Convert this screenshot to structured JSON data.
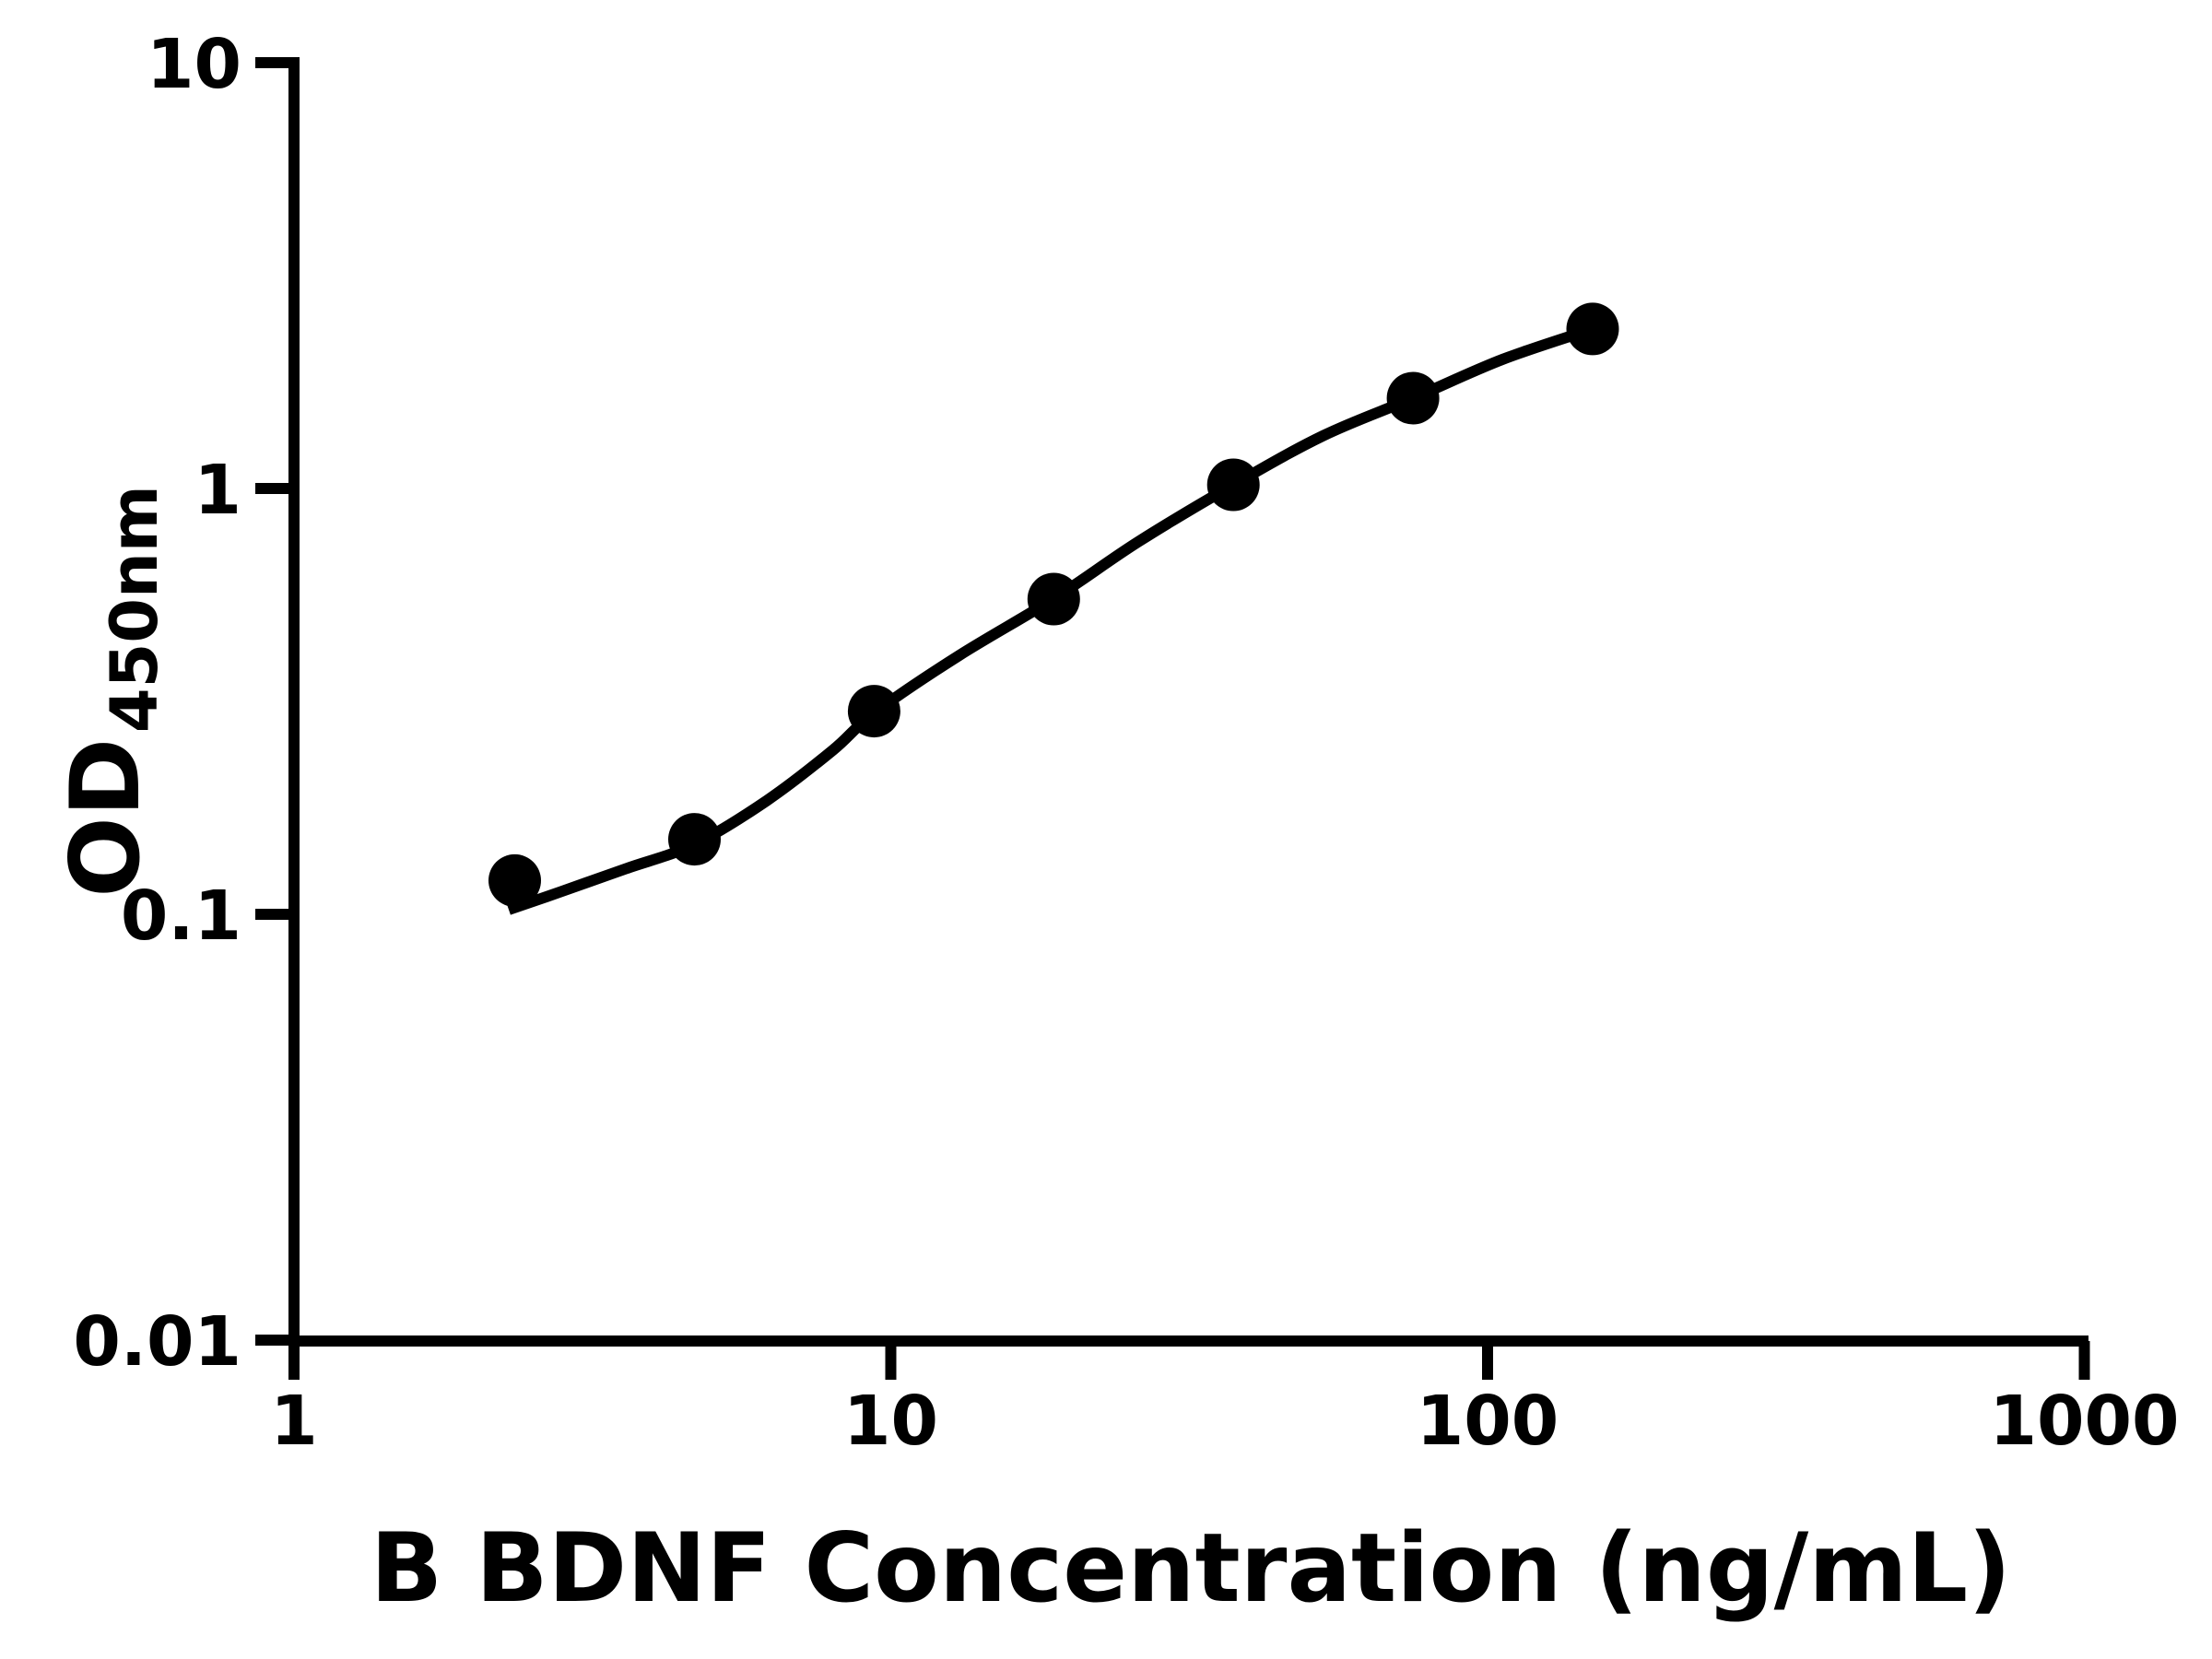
{
  "chart_data": {
    "type": "scatter",
    "title": "",
    "xlabel": "B BDNF Concentration (ng/mL)",
    "ylabel_main": "OD",
    "ylabel_sub": "450nm",
    "x_scale": "log",
    "y_scale": "log",
    "xlim": [
      1,
      1000
    ],
    "ylim": [
      0.01,
      10
    ],
    "grid": false,
    "legend": false,
    "x_ticks": [
      {
        "value": 1,
        "label": "1"
      },
      {
        "value": 10,
        "label": "10"
      },
      {
        "value": 100,
        "label": "100"
      },
      {
        "value": 1000,
        "label": "1000"
      }
    ],
    "y_ticks": [
      {
        "value": 10,
        "label": "10"
      },
      {
        "value": 1,
        "label": "1"
      },
      {
        "value": 0.1,
        "label": "0.1"
      },
      {
        "value": 0.01,
        "label": "0.01"
      }
    ],
    "series": [
      {
        "marker": "filled-circle",
        "color": "#000000",
        "points": [
          {
            "x": 2.344,
            "y": 0.12
          },
          {
            "x": 4.688,
            "y": 0.15
          },
          {
            "x": 9.375,
            "y": 0.3
          },
          {
            "x": 18.75,
            "y": 0.55
          },
          {
            "x": 37.5,
            "y": 1.02
          },
          {
            "x": 75,
            "y": 1.63
          },
          {
            "x": 150,
            "y": 2.37
          }
        ]
      }
    ],
    "fit_curve": {
      "points": [
        [
          2.29,
          0.1025
        ],
        [
          2.8,
          0.113
        ],
        [
          3.6,
          0.128
        ],
        [
          4.688,
          0.146
        ],
        [
          6.2,
          0.185
        ],
        [
          8.0,
          0.243
        ],
        [
          9.375,
          0.297
        ],
        [
          13.0,
          0.405
        ],
        [
          18.75,
          0.551
        ],
        [
          26.0,
          0.75
        ],
        [
          37.5,
          1.02
        ],
        [
          53.0,
          1.33
        ],
        [
          75.0,
          1.63
        ],
        [
          106.0,
          2.01
        ],
        [
          150.0,
          2.37
        ]
      ]
    },
    "colors": {
      "foreground": "#000000",
      "background": "#ffffff"
    }
  }
}
